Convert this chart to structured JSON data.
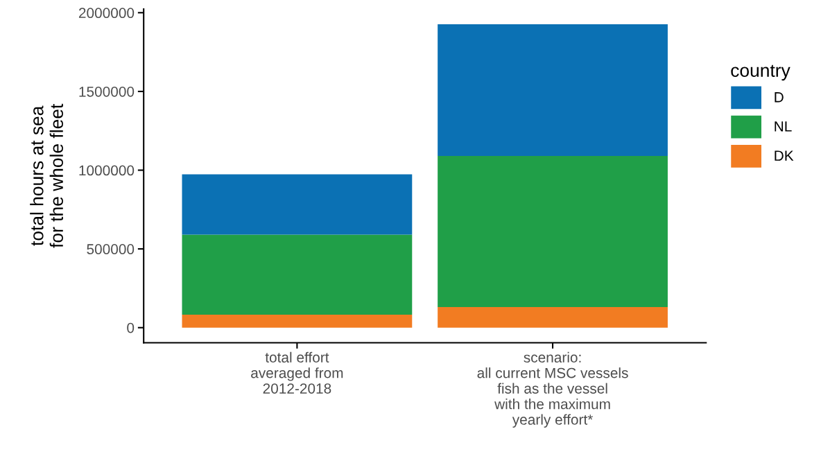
{
  "chart_data": {
    "type": "bar",
    "stacked": true,
    "ylabel": "total hours at sea\nfor the whole fleet",
    "legend_title": "country",
    "legend": "right",
    "categories": [
      "total effort\naveraged from\n2012-2018",
      "scenario:\nall current MSC vessels\nfish as the vessel\nwith the maximum\nyearly effort*"
    ],
    "series": [
      {
        "name": "DK",
        "color": "#f27c22",
        "values": [
          82000,
          131000
        ]
      },
      {
        "name": "NL",
        "color": "#209f48",
        "values": [
          509000,
          959000
        ]
      },
      {
        "name": "D",
        "color": "#0b71b4",
        "values": [
          383000,
          837000
        ]
      }
    ],
    "ylim": [
      -96000,
      2023000
    ],
    "yticks": [
      0,
      500000,
      1000000,
      1500000,
      2000000
    ],
    "grid": false
  }
}
